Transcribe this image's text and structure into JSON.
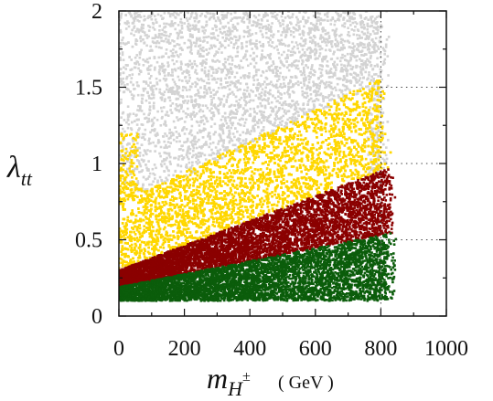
{
  "chart_data": {
    "type": "scatter",
    "xlabel": {
      "symbol": "m",
      "subscript": "H",
      "superscript": "±",
      "unit": "( GeV )"
    },
    "ylabel": {
      "symbol": "λ",
      "subscript": "tt"
    },
    "xlim": [
      0,
      1000
    ],
    "ylim": [
      0,
      2
    ],
    "xticks": [
      "0",
      "200",
      "400",
      "600",
      "800",
      "1000"
    ],
    "yticks": [
      "0",
      "0.5",
      "1",
      "1.5",
      "2"
    ],
    "grid": "dotted reference lines at y = 0.5, 1, 1.5 for x > 800",
    "colors": {
      "gray": "#d3d3d3",
      "yellow": "#ffd700",
      "darkred": "#8b0000",
      "green": "#0b5d0b"
    },
    "regions": [
      {
        "color": "green",
        "x_range": [
          0,
          850
        ],
        "y_lower": 0.1,
        "y_upper_at_x0": 0.19,
        "y_upper_at_x800": 0.53
      },
      {
        "color": "darkred",
        "x_range": [
          0,
          850
        ],
        "y_lower_at_x0": 0.19,
        "y_lower_at_x800": 0.53,
        "y_upper_at_x0": 0.3,
        "y_upper_at_x800": 0.95
      },
      {
        "color": "yellow",
        "x_range": [
          0,
          840
        ],
        "y_lower_at_x0": 0.3,
        "y_lower_at_x800": 0.95,
        "y_upper_at_x100": 0.83,
        "y_upper_at_x700": 1.45
      },
      {
        "color": "gray",
        "x_range": [
          0,
          840
        ],
        "y_upper": 2.0
      }
    ]
  }
}
